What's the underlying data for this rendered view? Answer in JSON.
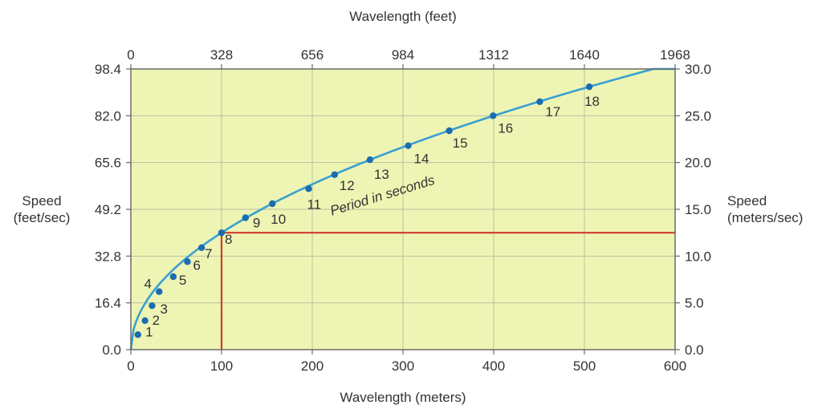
{
  "chart_data": {
    "type": "line",
    "title_top": "Wavelength (feet)",
    "xlabel": "Wavelength (meters)",
    "ylabel_left": [
      "Speed",
      "(feet/sec)"
    ],
    "ylabel_right": [
      "Speed",
      "(meters/sec)"
    ],
    "curve_label": "Period in seconds",
    "xlim": [
      0,
      600
    ],
    "ylim": [
      0,
      30
    ],
    "x_ticks": [
      0,
      100,
      200,
      300,
      400,
      500,
      600
    ],
    "x_tick_labels": [
      "0",
      "100",
      "200",
      "300",
      "400",
      "500",
      "600"
    ],
    "top_ticks": [
      0,
      328,
      656,
      984,
      1312,
      1640,
      1968
    ],
    "top_tick_labels": [
      "0",
      "328",
      "656",
      "984",
      "1312",
      "1640",
      "1968"
    ],
    "left_ticks": [
      0,
      16.4,
      32.8,
      49.2,
      65.6,
      82.0,
      98.4
    ],
    "left_tick_labels": [
      "0.0",
      "16.4",
      "32.8",
      "49.2",
      "65.6",
      "82.0",
      "98.4"
    ],
    "right_ticks": [
      0,
      5,
      10,
      15,
      20,
      25,
      30
    ],
    "right_tick_labels": [
      "0.0",
      "5.0",
      "10.0",
      "15.0",
      "20.0",
      "25.0",
      "30.0"
    ],
    "grid": true,
    "series": [
      {
        "points": [
          {
            "period": "1",
            "x": 7.8,
            "y": 1.6
          },
          {
            "period": "2",
            "x": 15.6,
            "y": 3.1
          },
          {
            "period": "3",
            "x": 23.4,
            "y": 4.7
          },
          {
            "period": "4",
            "x": 31.2,
            "y": 6.2
          },
          {
            "period": "5",
            "x": 46.8,
            "y": 7.8
          },
          {
            "period": "6",
            "x": 62.4,
            "y": 9.4
          },
          {
            "period": "7",
            "x": 78.0,
            "y": 10.9
          },
          {
            "period": "8",
            "x": 100.0,
            "y": 12.5
          },
          {
            "period": "9",
            "x": 126.4,
            "y": 14.1
          },
          {
            "period": "10",
            "x": 156.0,
            "y": 15.6
          },
          {
            "period": "11",
            "x": 196.0,
            "y": 17.2
          },
          {
            "period": "12",
            "x": 224.6,
            "y": 18.7
          },
          {
            "period": "13",
            "x": 263.6,
            "y": 20.3
          },
          {
            "period": "14",
            "x": 305.8,
            "y": 21.8
          },
          {
            "period": "15",
            "x": 351.0,
            "y": 23.4
          },
          {
            "period": "16",
            "x": 399.4,
            "y": 25.0
          },
          {
            "period": "17",
            "x": 450.8,
            "y": 26.5
          },
          {
            "period": "18",
            "x": 505.4,
            "y": 28.1
          }
        ]
      }
    ],
    "reference_lines": {
      "x": 100,
      "y": 12.5
    },
    "colors": {
      "plot_bg": "#eef5b4",
      "grid": "#bcc0a0",
      "curve": "#38a0d2",
      "point": "#1c6cb0",
      "reference": "#d23a2a",
      "frame": "#6a6a6a"
    }
  }
}
